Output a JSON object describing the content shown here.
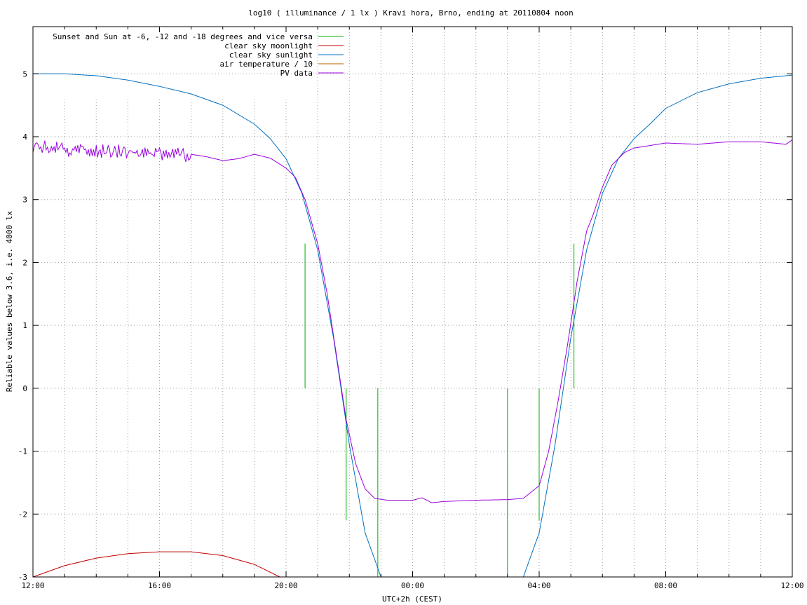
{
  "chart_data": {
    "type": "line",
    "title": "log10 ( illuminance / 1 lx ) Kravi hora, Brno, ending at 20110804 noon",
    "xlabel": "UTC+2h (CEST)",
    "ylabel": "Reliable values below 3.6, i.e. 4000 lx",
    "xlim": [
      0,
      24
    ],
    "ylim": [
      -3,
      5.75
    ],
    "x_unit": "hours since 12:00",
    "x_ticks": [
      {
        "value": 0,
        "label": "12:00"
      },
      {
        "value": 4,
        "label": "16:00"
      },
      {
        "value": 8,
        "label": "20:00"
      },
      {
        "value": 12,
        "label": "00:00"
      },
      {
        "value": 16,
        "label": "04:00"
      },
      {
        "value": 20,
        "label": "08:00"
      },
      {
        "value": 24,
        "label": "12:00"
      }
    ],
    "y_ticks": [
      5,
      4,
      3,
      2,
      1,
      0,
      -1,
      -2,
      -3
    ],
    "grid": true,
    "legend_position": "top-left",
    "series": [
      {
        "name": "Sunset and Sun at -6, -12 and -18 degrees and vice versa",
        "color": "#00b000",
        "kind": "impulses",
        "points": [
          [
            8.6,
            2.3
          ],
          [
            9.9,
            -2.1
          ],
          [
            10.9,
            -3.0
          ],
          [
            15.0,
            -3.0
          ],
          [
            16.0,
            -2.1
          ],
          [
            17.1,
            2.3
          ]
        ]
      },
      {
        "name": "clear sky moonlight",
        "color": "#c00000",
        "points": [
          [
            0,
            -3.0
          ],
          [
            1,
            -2.82
          ],
          [
            2,
            -2.7
          ],
          [
            3,
            -2.63
          ],
          [
            4,
            -2.6
          ],
          [
            5,
            -2.6
          ],
          [
            6,
            -2.66
          ],
          [
            7,
            -2.8
          ],
          [
            7.8,
            -3.0
          ]
        ]
      },
      {
        "name": "clear sky sunlight",
        "color": "#0070c0",
        "points": [
          [
            0,
            5.0
          ],
          [
            1,
            5.0
          ],
          [
            2,
            4.97
          ],
          [
            3,
            4.9
          ],
          [
            4,
            4.8
          ],
          [
            5,
            4.68
          ],
          [
            6,
            4.5
          ],
          [
            7,
            4.2
          ],
          [
            7.5,
            3.97
          ],
          [
            8,
            3.65
          ],
          [
            8.5,
            3.1
          ],
          [
            9,
            2.2
          ],
          [
            9.5,
            0.8
          ],
          [
            10,
            -0.9
          ],
          [
            10.5,
            -2.3
          ],
          [
            11,
            -3.0
          ],
          [
            15.5,
            -3.0
          ],
          [
            16,
            -2.3
          ],
          [
            16.5,
            -0.9
          ],
          [
            17,
            0.8
          ],
          [
            17.5,
            2.2
          ],
          [
            18,
            3.1
          ],
          [
            18.5,
            3.65
          ],
          [
            19,
            3.97
          ],
          [
            19.5,
            4.2
          ],
          [
            20,
            4.45
          ],
          [
            21,
            4.7
          ],
          [
            22,
            4.84
          ],
          [
            23,
            4.93
          ],
          [
            24,
            4.98
          ]
        ]
      },
      {
        "name": "air temperature / 10",
        "color": "#c06000",
        "points": []
      },
      {
        "name": "PV data",
        "color": "#9900dd",
        "noisy_until": 5.0,
        "points": [
          [
            0,
            3.88
          ],
          [
            0.5,
            3.85
          ],
          [
            1,
            3.82
          ],
          [
            1.5,
            3.8
          ],
          [
            2,
            3.78
          ],
          [
            2.5,
            3.8
          ],
          [
            3,
            3.78
          ],
          [
            3.5,
            3.77
          ],
          [
            4,
            3.76
          ],
          [
            4.5,
            3.74
          ],
          [
            5,
            3.72
          ],
          [
            5.5,
            3.68
          ],
          [
            6,
            3.62
          ],
          [
            6.5,
            3.65
          ],
          [
            7,
            3.72
          ],
          [
            7.5,
            3.66
          ],
          [
            8,
            3.5
          ],
          [
            8.3,
            3.35
          ],
          [
            8.6,
            3.0
          ],
          [
            9,
            2.3
          ],
          [
            9.3,
            1.5
          ],
          [
            9.6,
            0.5
          ],
          [
            9.9,
            -0.5
          ],
          [
            10.2,
            -1.2
          ],
          [
            10.5,
            -1.6
          ],
          [
            10.8,
            -1.75
          ],
          [
            11.2,
            -1.78
          ],
          [
            12,
            -1.78
          ],
          [
            12.3,
            -1.74
          ],
          [
            12.6,
            -1.82
          ],
          [
            13,
            -1.8
          ],
          [
            14,
            -1.78
          ],
          [
            15,
            -1.77
          ],
          [
            15.5,
            -1.75
          ],
          [
            16,
            -1.55
          ],
          [
            16.3,
            -1.0
          ],
          [
            16.6,
            -0.2
          ],
          [
            16.9,
            0.7
          ],
          [
            17.2,
            1.7
          ],
          [
            17.5,
            2.5
          ],
          [
            17.7,
            2.75
          ],
          [
            18,
            3.2
          ],
          [
            18.3,
            3.55
          ],
          [
            18.7,
            3.75
          ],
          [
            19,
            3.82
          ],
          [
            20,
            3.9
          ],
          [
            21,
            3.88
          ],
          [
            22,
            3.92
          ],
          [
            23,
            3.92
          ],
          [
            23.8,
            3.88
          ],
          [
            24,
            3.95
          ]
        ]
      }
    ]
  }
}
